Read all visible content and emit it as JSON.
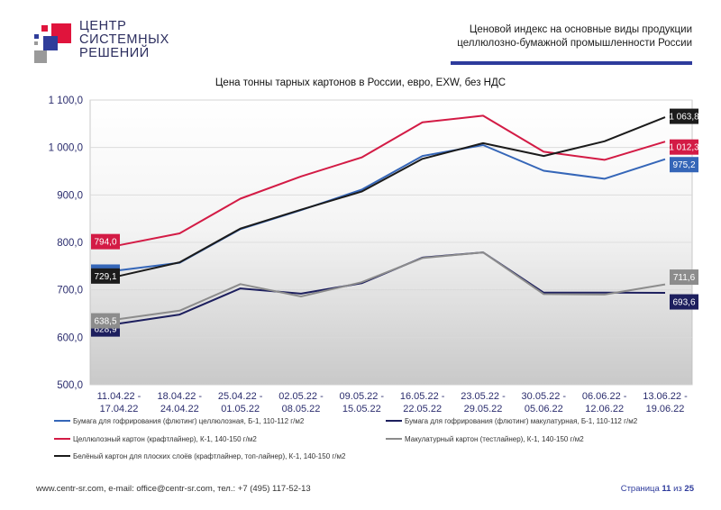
{
  "header": {
    "logo_lines": [
      "ЦЕНТР",
      "СИСТЕМНЫХ",
      "РЕШЕНИЙ"
    ],
    "title_line1": "Ценовой индекс на основные виды продукции",
    "title_line2": "целлюлозно-бумажной промышленности России"
  },
  "footer": {
    "contacts": "www.centr-sr.com, e-mail: office@centr-sr.com, тел.: +7 (495) 117-52-13",
    "page_prefix": "Страница",
    "page_current": "11",
    "page_sep": "из",
    "page_total": "25"
  },
  "colors": {
    "accent_blue": "#2e3b9c",
    "logo_red": "#e0143c",
    "logo_blue": "#2f3d9a",
    "logo_gray": "#9a9a9a"
  },
  "chart_data": {
    "type": "line",
    "title": "Цена тонны тарных картонов в России, евро, EXW, без НДС",
    "xlabel": "",
    "ylabel": "",
    "ylim": [
      500,
      1100
    ],
    "y_ticks": [
      "500,0",
      "600,0",
      "700,0",
      "800,0",
      "900,0",
      "1 000,0",
      "1 100,0"
    ],
    "y_tick_values": [
      500,
      600,
      700,
      800,
      900,
      1000,
      1100
    ],
    "grid": true,
    "legend_position": "bottom",
    "categories": [
      [
        "11.04.22 -",
        "17.04.22"
      ],
      [
        "18.04.22 -",
        "24.04.22"
      ],
      [
        "25.04.22 -",
        "01.05.22"
      ],
      [
        "02.05.22 -",
        "08.05.22"
      ],
      [
        "09.05.22 -",
        "15.05.22"
      ],
      [
        "16.05.22 -",
        "22.05.22"
      ],
      [
        "23.05.22 -",
        "29.05.22"
      ],
      [
        "30.05.22 -",
        "05.06.22"
      ],
      [
        "06.06.22 -",
        "12.06.22"
      ],
      [
        "13.06.22 -",
        "19.06.22"
      ]
    ],
    "series": [
      {
        "name": "Бумага для гофрирования (флютинг) целлюлозная, Б-1, 110-112 г/м2",
        "color": "#3566b8",
        "values": [
          741.2,
          757,
          828,
          868,
          911,
          982,
          1005,
          951,
          934,
          975.2
        ],
        "start_label": "741,2",
        "end_label": "975,2"
      },
      {
        "name": "Бумага для гофрирования (флютинг) макулатурная, Б-1, 110-112 г/м2",
        "color": "#1d1f5e",
        "values": [
          628.9,
          648,
          703,
          692,
          714,
          768,
          779,
          694,
          694,
          693.6
        ],
        "start_label": "628,9",
        "end_label": "693,6"
      },
      {
        "name": "Целлюлозный картон (крафтлайнер), К-1, 140-150 г/м2",
        "color": "#d31b45",
        "values": [
          794.0,
          819,
          892,
          939,
          979,
          1053,
          1067,
          991,
          974,
          1012.3
        ],
        "start_label": "794,0",
        "end_label": "1 012,3"
      },
      {
        "name": "Макулатурный картон (тестлайнер), К-1, 140-150 г/м2",
        "color": "#8c8c8c",
        "values": [
          638.5,
          656,
          712,
          686,
          716,
          767,
          779,
          691,
          690,
          711.6
        ],
        "start_label": "638,5",
        "end_label": "711,6"
      },
      {
        "name": "Белёный картон для плоских слоёв (крафтлайнер, топ-лайнер), К-1, 140-150 г/м2",
        "color": "#1b1b1b",
        "values": [
          729.1,
          758,
          829,
          869,
          907,
          976,
          1009,
          982,
          1013,
          1063.8
        ],
        "start_label": "729,1",
        "end_label": "1 063,8"
      }
    ]
  }
}
